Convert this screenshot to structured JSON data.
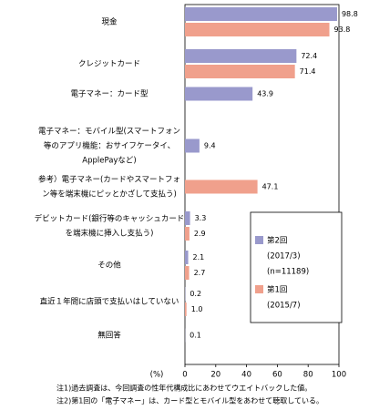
{
  "chart_data": {
    "type": "bar",
    "orientation": "horizontal",
    "categories": [
      [
        "現金"
      ],
      [
        "クレジットカード"
      ],
      [
        "電子マネー：カード型"
      ],
      [
        "電子マネー：モバイル型(スマートフォン",
        "等のアプリ機能：おサイフケータイ、",
        "ApplePayなど)"
      ],
      [
        "参考）電子マネー(カードやスマートフォ",
        "ン等を端末機にピッとかざして支払う)"
      ],
      [
        "デビットカード(銀行等のキャッシュカード",
        "を端末機に挿入し支払う)"
      ],
      [
        "その他"
      ],
      [
        "直近１年間に店頭で支払いはしていない"
      ],
      [
        "無回答"
      ]
    ],
    "series": [
      {
        "name": "第2回",
        "period": "(2017/3)",
        "sample": "(n=11189)",
        "color": "#9999cc",
        "values": [
          98.8,
          72.4,
          43.9,
          9.4,
          null,
          3.3,
          2.1,
          0.2,
          0.1
        ]
      },
      {
        "name": "第1回",
        "period": "(2015/7)",
        "color": "#f0a08c",
        "values": [
          93.8,
          71.4,
          null,
          null,
          47.1,
          2.9,
          2.7,
          1.0,
          null
        ],
        "value_labels": [
          "93.8",
          "71.4",
          null,
          null,
          "47.1",
          "2.9",
          "2.7",
          "1.0",
          null
        ]
      }
    ],
    "xlim": [
      0,
      100
    ],
    "xticks": [
      0,
      20,
      40,
      60,
      80,
      100
    ],
    "x_unit": "(%)",
    "notes": [
      "注1)過去調査は、今回調査の性年代構成比にあわせてウエイトバックした値。",
      "注2)第1回の「電子マネー」は、カード型とモバイル型をあわせて聴取している。"
    ]
  }
}
